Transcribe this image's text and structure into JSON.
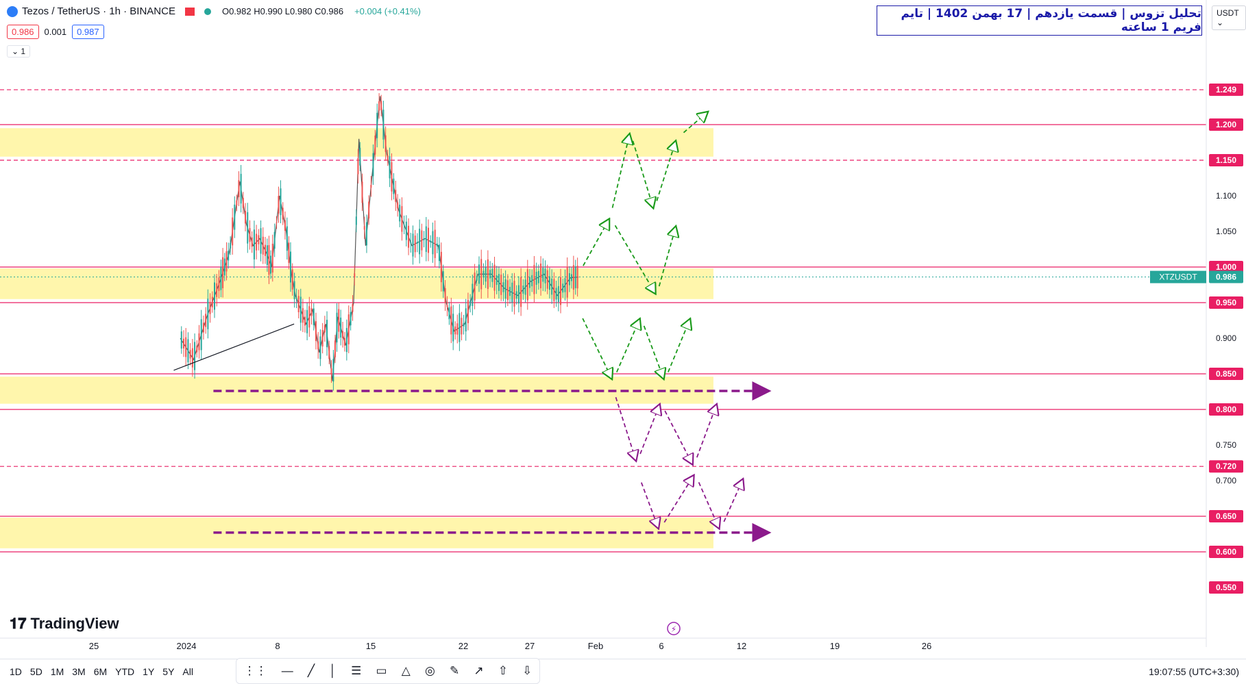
{
  "header": {
    "symbol": "Tezos / TetherUS · 1h · BINANCE",
    "ohlc": "O0.982 H0.990 L0.980 C0.986",
    "change": "+0.004 (+0.41%)",
    "sell_price": "0.986",
    "spread": "0.001",
    "buy_price": "0.987",
    "indicator_count": "1"
  },
  "title_banner": "تحلیل تزوس | قسمت یازدهم | 17 بهمن 1402 | تایم فریم 1 ساعته",
  "currency": "USDT",
  "watermark": "TradingView",
  "ranges": [
    "1D",
    "5D",
    "1M",
    "3M",
    "6M",
    "YTD",
    "1Y",
    "5Y",
    "All"
  ],
  "clock": "19:07:55 (UTC+3:30)",
  "toolbar_icons": [
    "drag-handle-icon",
    "horizontal-line-icon",
    "trend-line-icon",
    "vertical-line-icon",
    "fib-icon",
    "rectangle-icon",
    "triangle-icon",
    "circle-icon",
    "brush-icon",
    "arrow-icon",
    "arrow-up-icon",
    "arrow-down-icon"
  ],
  "colors": {
    "up": "#26a69a",
    "down": "#ef5350",
    "level": "#e91e63",
    "zone": "#fff59d",
    "green_path": "#1a9a1a",
    "purple_path": "#8b1a8b",
    "title": "#1a1aa8"
  },
  "chart_data": {
    "type": "line",
    "title": "Tezos / TetherUS · 1h · BINANCE",
    "x_ticks": [
      "25",
      "2024",
      "8",
      "15",
      "22",
      "27",
      "Feb",
      "6",
      "12",
      "19",
      "26"
    ],
    "y_ticks": [
      1.1,
      1.05,
      0.9,
      0.75,
      0.7
    ],
    "ylim": [
      0.53,
      1.3
    ],
    "last_price": {
      "label": "XTZUSDT",
      "value": 0.986
    },
    "price_levels": [
      {
        "value": 1.249,
        "style": "dashed"
      },
      {
        "value": 1.2,
        "style": "solid"
      },
      {
        "value": 1.15,
        "style": "dashed"
      },
      {
        "value": 1.0,
        "style": "solid"
      },
      {
        "value": 0.95,
        "style": "solid"
      },
      {
        "value": 0.85,
        "style": "solid"
      },
      {
        "value": 0.8,
        "style": "solid"
      },
      {
        "value": 0.72,
        "style": "dashed"
      },
      {
        "value": 0.65,
        "style": "solid"
      },
      {
        "value": 0.6,
        "style": "solid"
      },
      {
        "value": 0.55,
        "style": "none"
      }
    ],
    "zones": [
      {
        "from": 1.155,
        "to": 1.195
      },
      {
        "from": 0.955,
        "to": 0.998
      },
      {
        "from": 0.808,
        "to": 0.846
      },
      {
        "from": 0.605,
        "to": 0.648
      }
    ],
    "price_series": [
      {
        "x": -14.5,
        "y": 0.9
      },
      {
        "x": -13.5,
        "y": 0.87
      },
      {
        "x": -12.5,
        "y": 0.93
      },
      {
        "x": -11.5,
        "y": 0.98
      },
      {
        "x": -10.8,
        "y": 1.02
      },
      {
        "x": -10,
        "y": 1.12
      },
      {
        "x": -9.5,
        "y": 1.06
      },
      {
        "x": -9,
        "y": 1.03
      },
      {
        "x": -8.5,
        "y": 1.04
      },
      {
        "x": -8,
        "y": 1.02
      },
      {
        "x": -7.6,
        "y": 1.0
      },
      {
        "x": -7,
        "y": 1.1
      },
      {
        "x": -6.5,
        "y": 1.05
      },
      {
        "x": -6.1,
        "y": 0.99
      },
      {
        "x": -5.8,
        "y": 0.96
      },
      {
        "x": -5,
        "y": 0.92
      },
      {
        "x": -4.5,
        "y": 0.94
      },
      {
        "x": -4,
        "y": 0.88
      },
      {
        "x": -3.5,
        "y": 0.92
      },
      {
        "x": -3,
        "y": 0.84
      },
      {
        "x": -2.6,
        "y": 0.93
      },
      {
        "x": -2,
        "y": 0.89
      },
      {
        "x": -1.4,
        "y": 0.95
      },
      {
        "x": -1,
        "y": 1.18
      },
      {
        "x": -0.5,
        "y": 1.03
      },
      {
        "x": 0,
        "y": 1.13
      },
      {
        "x": 0.6,
        "y": 1.24
      },
      {
        "x": 1.1,
        "y": 1.16
      },
      {
        "x": 2,
        "y": 1.08
      },
      {
        "x": 3,
        "y": 1.03
      },
      {
        "x": 4,
        "y": 1.04
      },
      {
        "x": 5,
        "y": 1.03
      },
      {
        "x": 5.6,
        "y": 0.95
      },
      {
        "x": 6.2,
        "y": 0.91
      },
      {
        "x": 7,
        "y": 0.92
      },
      {
        "x": 8,
        "y": 0.99
      },
      {
        "x": 9,
        "y": 0.99
      },
      {
        "x": 10,
        "y": 0.97
      },
      {
        "x": 11,
        "y": 0.96
      },
      {
        "x": 12,
        "y": 0.98
      },
      {
        "x": 13,
        "y": 0.99
      },
      {
        "x": 14,
        "y": 0.96
      },
      {
        "x": 15,
        "y": 0.985
      },
      {
        "x": 15.6,
        "y": 0.986
      }
    ],
    "support_line": {
      "x1": -15,
      "y1": 0.855,
      "x2": -5.9,
      "y2": 0.92
    },
    "green_path_upper": [
      {
        "x": 15.6,
        "y": 0.99
      },
      {
        "x": 18,
        "y": 1.07
      },
      {
        "x": 19.5,
        "y": 1.19
      },
      {
        "x": 21.3,
        "y": 1.08
      },
      {
        "x": 23,
        "y": 1.18
      },
      {
        "x": 25.5,
        "y": 1.22
      }
    ],
    "green_path_upper_b": [
      {
        "x": 18,
        "y": 1.07
      },
      {
        "x": 21.5,
        "y": 0.96
      },
      {
        "x": 23,
        "y": 1.06
      }
    ],
    "green_path_lower": [
      {
        "x": 15.6,
        "y": 0.94
      },
      {
        "x": 18.2,
        "y": 0.84
      },
      {
        "x": 20.3,
        "y": 0.93
      },
      {
        "x": 22.1,
        "y": 0.84
      },
      {
        "x": 24.1,
        "y": 0.93
      }
    ],
    "purple_path_a": [
      {
        "x": 18.2,
        "y": 0.83
      },
      {
        "x": 20,
        "y": 0.725
      },
      {
        "x": 21.8,
        "y": 0.81
      },
      {
        "x": 24.3,
        "y": 0.72
      },
      {
        "x": 26.1,
        "y": 0.81
      }
    ],
    "purple_path_b": [
      {
        "x": 20.1,
        "y": 0.71
      },
      {
        "x": 21.7,
        "y": 0.63
      },
      {
        "x": 24.4,
        "y": 0.71
      },
      {
        "x": 26.3,
        "y": 0.63
      },
      {
        "x": 28.1,
        "y": 0.705
      }
    ],
    "purple_arrows": [
      {
        "y": 0.826,
        "x1": -12,
        "x2": 30
      },
      {
        "y": 0.627,
        "x1": -12,
        "x2": 30
      }
    ]
  }
}
